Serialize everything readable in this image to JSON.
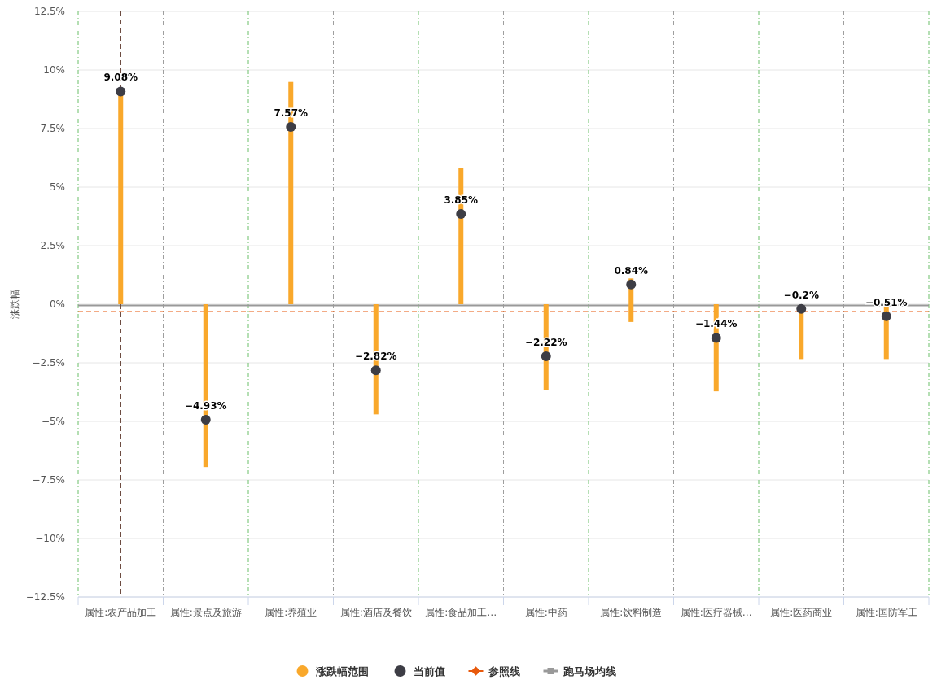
{
  "chart_data": {
    "type": "bar",
    "ylabel": "涨跌幅",
    "categories": [
      "属性:农产品加工",
      "属性:景点及旅游",
      "属性:养殖业",
      "属性:酒店及餐饮",
      "属性:食品加工…",
      "属性:中药",
      "属性:饮料制造",
      "属性:医疗器械…",
      "属性:医药商业",
      "属性:国防军工"
    ],
    "series": [
      {
        "name": "涨跌幅范围",
        "color": "#f9a82b",
        "base": [
          0,
          0,
          0,
          0,
          0,
          0,
          -0.76,
          0,
          -0.2,
          0
        ],
        "values": [
          9.08,
          -6.95,
          9.49,
          -4.7,
          5.81,
          -3.66,
          1.86,
          -3.72,
          -2.14,
          -2.34
        ]
      },
      {
        "name": "当前值",
        "type": "scatter",
        "color": "#3d3d45",
        "marker": "circle",
        "values": [
          9.08,
          -4.93,
          7.57,
          -2.82,
          3.85,
          -2.22,
          0.84,
          -1.44,
          -0.2,
          -0.51
        ],
        "value_labels": [
          "9.08%",
          "−4.93%",
          "7.57%",
          "−2.82%",
          "3.85%",
          "−2.22%",
          "0.84%",
          "−1.44%",
          "−0.2%",
          "−0.51%"
        ]
      }
    ],
    "ref_lines": [
      {
        "axis": "y",
        "value": -0.32,
        "label": "参照线",
        "color": "#e8590c",
        "line_style": "dashed"
      },
      {
        "axis": "y",
        "value": -0.05,
        "label": "跑马场均线",
        "color": "#999999",
        "line_style": "solid"
      },
      {
        "axis": "x",
        "value": "属性:农产品加工",
        "label": null,
        "color": "#6d4c41",
        "line_style": "dashed"
      }
    ],
    "ylim": [
      -12.5,
      12.5
    ],
    "yticks": [
      {
        "value": -12.5,
        "label": "−12.5%"
      },
      {
        "value": -10,
        "label": "−10%"
      },
      {
        "value": -7.5,
        "label": "−7.5%"
      },
      {
        "value": -5,
        "label": "−5%"
      },
      {
        "value": -2.5,
        "label": "−2.5%"
      },
      {
        "value": 0,
        "label": "0%"
      },
      {
        "value": 2.5,
        "label": "2.5%"
      },
      {
        "value": 5,
        "label": "5%"
      },
      {
        "value": 7.5,
        "label": "7.5%"
      },
      {
        "value": 10,
        "label": "10%"
      },
      {
        "value": 12.5,
        "label": "12.5%"
      }
    ],
    "grid": true,
    "legend": "bottom"
  }
}
